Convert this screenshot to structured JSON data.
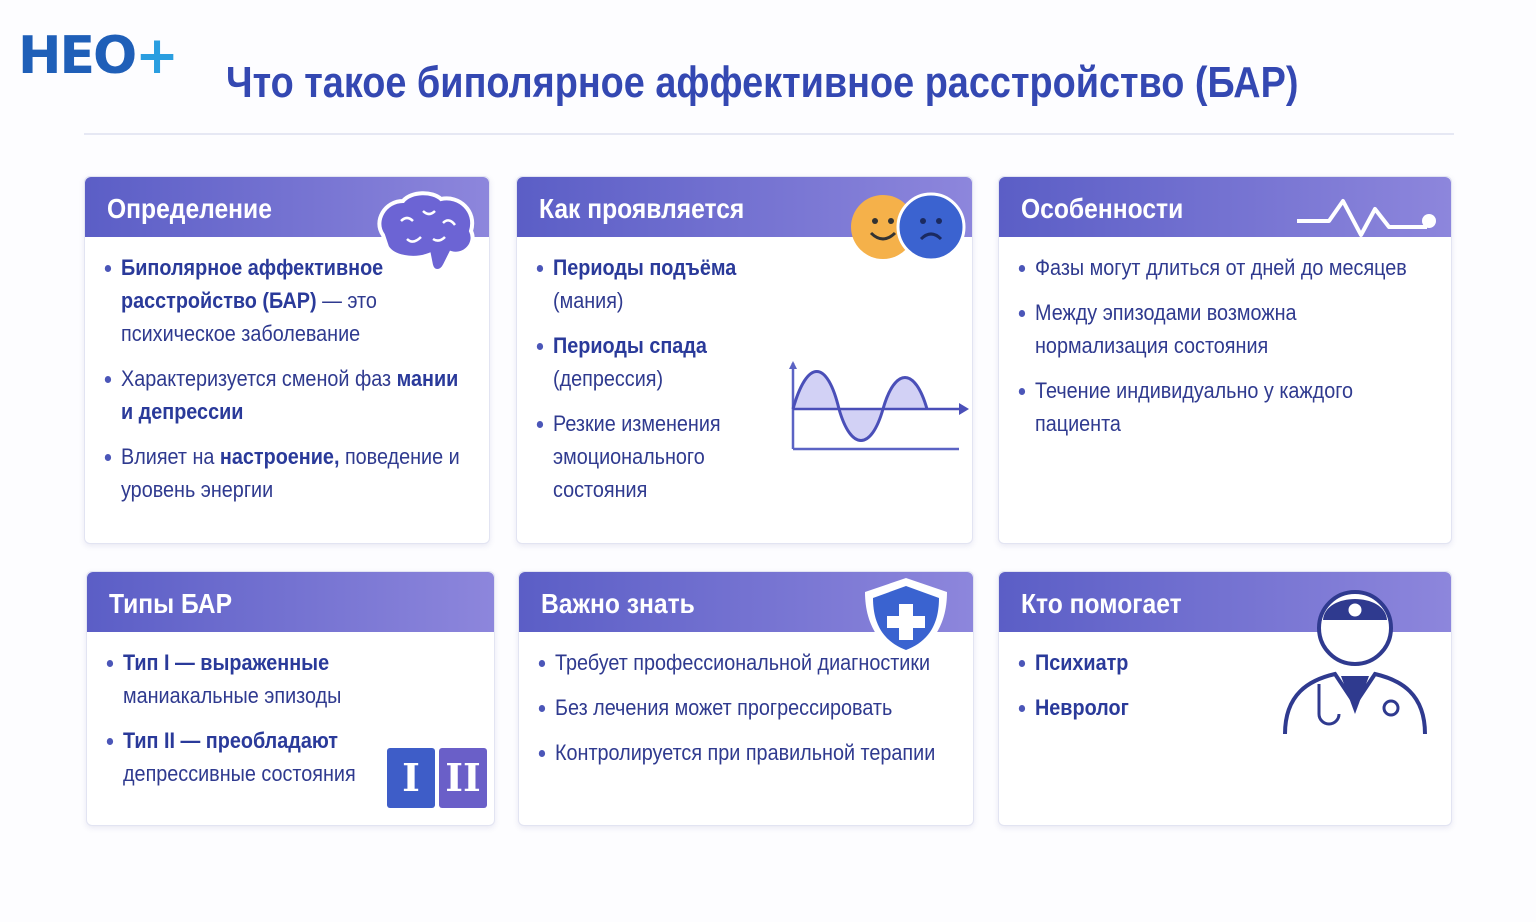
{
  "logo": {
    "text": "НЕО",
    "plus": "+"
  },
  "title": "Что такое биполярное аффективное расстройство (БАР)",
  "colors": {
    "header_start": "#5b5ec6",
    "header_end": "#8d86dc",
    "title": "#3448b2",
    "text": "#2f3a8f"
  },
  "cards": [
    {
      "title": "Определение",
      "icon": "brain-icon",
      "items": [
        [
          {
            "t": "Биполярное аффективное расстройство (БАР)",
            "b": true
          },
          {
            "t": " — это психическое заболевание",
            "b": false
          }
        ],
        [
          {
            "t": "Характеризуется сменой фаз ",
            "b": false
          },
          {
            "t": "мании и депрессии",
            "b": true
          }
        ],
        [
          {
            "t": "Влияет на ",
            "b": false
          },
          {
            "t": "настроение,",
            "b": true
          },
          {
            "t": " поведение и уровень энергии",
            "b": false
          }
        ]
      ]
    },
    {
      "title": "Как проявляется",
      "icon": "mood-faces-icon",
      "items": [
        [
          {
            "t": "Периоды подъёма",
            "b": true
          },
          {
            "t": " (мания)",
            "b": false
          }
        ],
        [
          {
            "t": "Периоды спада",
            "b": true
          },
          {
            "t": " (депрессия)",
            "b": false
          }
        ],
        [
          {
            "t": "Резкие изменения эмоционального состояния",
            "b": false
          }
        ]
      ]
    },
    {
      "title": "Особенности",
      "icon": "pulse-icon",
      "items": [
        [
          {
            "t": "Фазы могут длиться от дней до месяцев",
            "b": false
          }
        ],
        [
          {
            "t": "Между эпизодами возможна нормализация состояния",
            "b": false
          }
        ],
        [
          {
            "t": "Течение индивидуально у каждого пациента",
            "b": false
          }
        ]
      ]
    },
    {
      "title": "Типы БАР",
      "icon": "type-badges-icon",
      "badges": [
        "I",
        "II"
      ],
      "items": [
        [
          {
            "t": "Тип I — выраженные",
            "b": true
          },
          {
            "t": " маниакальные эпизоды",
            "b": false
          }
        ],
        [
          {
            "t": "Тип II — преобладают",
            "b": true
          },
          {
            "t": " депрессивные состояния",
            "b": false
          }
        ]
      ]
    },
    {
      "title": "Важно знать",
      "icon": "shield-plus-icon",
      "items": [
        [
          {
            "t": "Требует профессиональной диагностики",
            "b": false
          }
        ],
        [
          {
            "t": "Без лечения может прогрессировать",
            "b": false
          }
        ],
        [
          {
            "t": "Контролируется при правильной терапии",
            "b": false
          }
        ]
      ]
    },
    {
      "title": "Кто помогает",
      "icon": "doctor-icon",
      "items": [
        [
          {
            "t": "Психиатр",
            "b": true
          }
        ],
        [
          {
            "t": "Невролог",
            "b": true
          }
        ]
      ]
    }
  ]
}
